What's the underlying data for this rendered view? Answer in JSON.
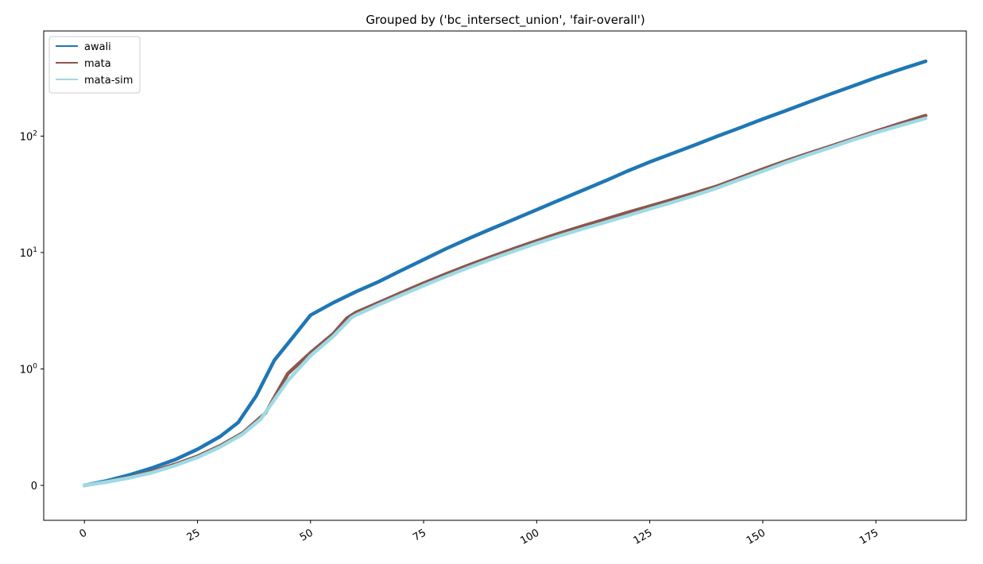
{
  "chart_data": {
    "type": "line",
    "title": "Grouped by ('bc_intersect_union', 'fair-overall')",
    "xlabel": "",
    "ylabel": "",
    "yscale": "symlog",
    "xlim": [
      -9,
      195
    ],
    "ylim": [
      -0.3,
      800
    ],
    "grid": false,
    "legend_position": "top-left",
    "x_ticks": [
      {
        "value": 0,
        "label": "0"
      },
      {
        "value": 25,
        "label": "25"
      },
      {
        "value": 50,
        "label": "50"
      },
      {
        "value": 75,
        "label": "75"
      },
      {
        "value": 100,
        "label": "100"
      },
      {
        "value": 125,
        "label": "125"
      },
      {
        "value": 150,
        "label": "150"
      },
      {
        "value": 175,
        "label": "175"
      }
    ],
    "y_ticks": [
      {
        "value": 0,
        "label": "0",
        "base": "",
        "exp": ""
      },
      {
        "value": 1,
        "label": "",
        "base": "10",
        "exp": "0"
      },
      {
        "value": 10,
        "label": "",
        "base": "10",
        "exp": "1"
      },
      {
        "value": 100,
        "label": "",
        "base": "10",
        "exp": "2"
      }
    ],
    "series": [
      {
        "name": "awali",
        "color": "#1f77b4",
        "points": [
          [
            0,
            0
          ],
          [
            5,
            0.04
          ],
          [
            10,
            0.09
          ],
          [
            15,
            0.15
          ],
          [
            20,
            0.22
          ],
          [
            25,
            0.31
          ],
          [
            30,
            0.42
          ],
          [
            34,
            0.54
          ],
          [
            38,
            0.77
          ],
          [
            42,
            1.19
          ],
          [
            46,
            1.85
          ],
          [
            50,
            2.9
          ],
          [
            55,
            3.7
          ],
          [
            60,
            4.6
          ],
          [
            65,
            5.6
          ],
          [
            70,
            7.0
          ],
          [
            75,
            8.7
          ],
          [
            80,
            10.8
          ],
          [
            85,
            13.2
          ],
          [
            90,
            16.0
          ],
          [
            95,
            19.3
          ],
          [
            100,
            23.3
          ],
          [
            105,
            28.2
          ],
          [
            110,
            34
          ],
          [
            115,
            41
          ],
          [
            120,
            50
          ],
          [
            125,
            60
          ],
          [
            130,
            71
          ],
          [
            135,
            84
          ],
          [
            140,
            100
          ],
          [
            145,
            118
          ],
          [
            150,
            140
          ],
          [
            155,
            165
          ],
          [
            160,
            195
          ],
          [
            165,
            230
          ],
          [
            170,
            270
          ],
          [
            175,
            318
          ],
          [
            180,
            370
          ],
          [
            186,
            440
          ]
        ]
      },
      {
        "name": "mata",
        "color": "#8c564b",
        "points": [
          [
            0,
            0
          ],
          [
            5,
            0.03
          ],
          [
            10,
            0.07
          ],
          [
            15,
            0.12
          ],
          [
            20,
            0.18
          ],
          [
            25,
            0.25
          ],
          [
            30,
            0.34
          ],
          [
            35,
            0.45
          ],
          [
            40,
            0.62
          ],
          [
            45,
            0.96
          ],
          [
            50,
            1.38
          ],
          [
            55,
            2.0
          ],
          [
            58,
            2.72
          ],
          [
            60,
            3.05
          ],
          [
            65,
            3.7
          ],
          [
            70,
            4.5
          ],
          [
            75,
            5.45
          ],
          [
            80,
            6.55
          ],
          [
            85,
            7.8
          ],
          [
            90,
            9.2
          ],
          [
            95,
            10.8
          ],
          [
            100,
            12.6
          ],
          [
            105,
            14.6
          ],
          [
            110,
            16.8
          ],
          [
            115,
            19.2
          ],
          [
            120,
            22
          ],
          [
            125,
            25
          ],
          [
            130,
            28.5
          ],
          [
            135,
            32.5
          ],
          [
            140,
            37.3
          ],
          [
            145,
            44
          ],
          [
            150,
            52
          ],
          [
            155,
            61
          ],
          [
            160,
            71
          ],
          [
            165,
            82
          ],
          [
            170,
            95
          ],
          [
            175,
            110
          ],
          [
            180,
            127
          ],
          [
            186,
            150
          ]
        ]
      },
      {
        "name": "mata-sim",
        "color": "#9edae5",
        "points": [
          [
            0,
            0
          ],
          [
            5,
            0.03
          ],
          [
            10,
            0.065
          ],
          [
            15,
            0.11
          ],
          [
            20,
            0.17
          ],
          [
            25,
            0.24
          ],
          [
            30,
            0.33
          ],
          [
            35,
            0.44
          ],
          [
            39,
            0.57
          ],
          [
            45,
            0.9
          ],
          [
            50,
            1.3
          ],
          [
            55,
            1.9
          ],
          [
            59,
            2.75
          ],
          [
            60,
            2.9
          ],
          [
            65,
            3.55
          ],
          [
            70,
            4.3
          ],
          [
            75,
            5.2
          ],
          [
            80,
            6.25
          ],
          [
            85,
            7.45
          ],
          [
            90,
            8.8
          ],
          [
            95,
            10.3
          ],
          [
            100,
            12.0
          ],
          [
            105,
            13.9
          ],
          [
            110,
            15.9
          ],
          [
            115,
            18.1
          ],
          [
            120,
            20.7
          ],
          [
            125,
            23.7
          ],
          [
            130,
            27
          ],
          [
            135,
            31
          ],
          [
            140,
            36
          ],
          [
            145,
            42.5
          ],
          [
            150,
            50
          ],
          [
            155,
            59
          ],
          [
            160,
            69
          ],
          [
            165,
            80
          ],
          [
            170,
            93
          ],
          [
            175,
            107
          ],
          [
            180,
            122
          ],
          [
            186,
            142
          ]
        ]
      }
    ]
  }
}
